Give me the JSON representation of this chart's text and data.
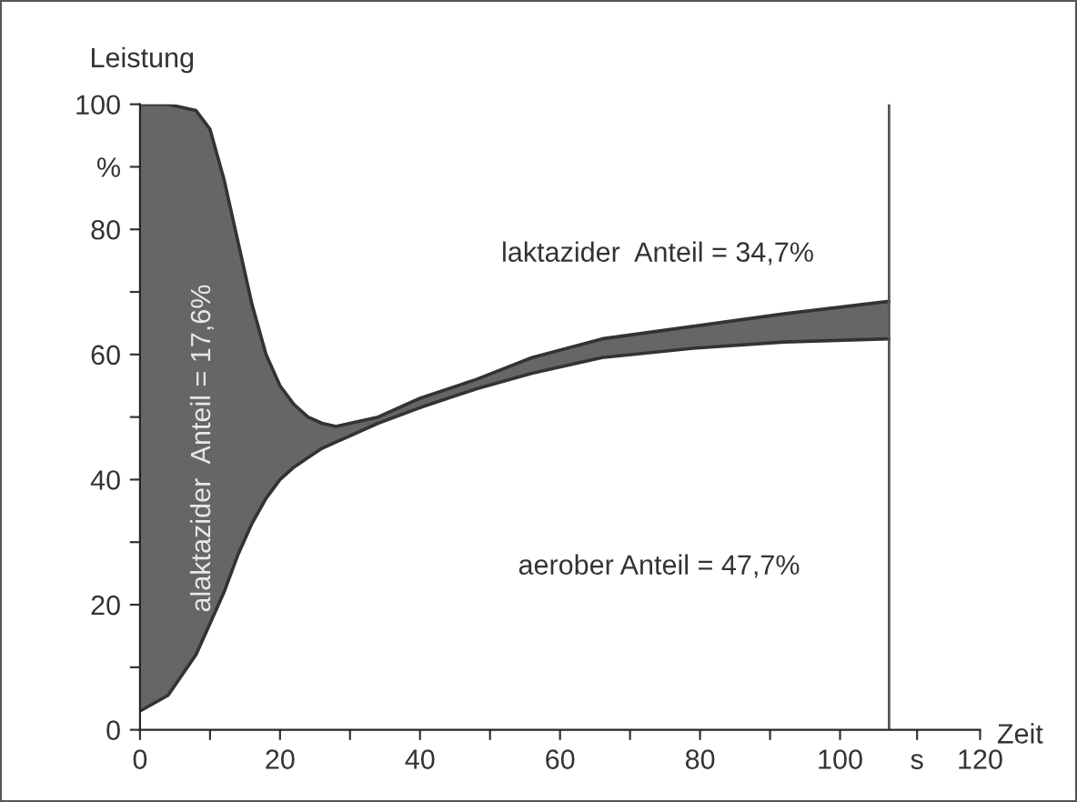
{
  "chart_data": {
    "type": "line",
    "xlabel": "Zeit",
    "ylabel": "Leistung",
    "x": [
      0,
      4,
      8,
      10,
      12,
      14,
      16,
      18,
      20,
      22,
      24,
      26,
      28,
      30,
      34,
      40,
      48,
      56,
      66,
      79,
      92,
      107
    ],
    "series": [
      {
        "color": "#333333",
        "values": [
          3,
          5.5,
          12,
          17,
          22,
          28,
          33,
          37,
          40,
          42,
          43.5,
          45,
          46,
          47,
          49,
          51.5,
          54.5,
          57,
          59.5,
          61,
          62,
          62.5
        ]
      },
      {
        "color": "#333333",
        "values": [
          100,
          100,
          99,
          96,
          88,
          78,
          68,
          60,
          55,
          52,
          50,
          49,
          48.5,
          49,
          50,
          53,
          56,
          59.5,
          62.5,
          64.5,
          66.5,
          68.5
        ],
        "lower": [
          3,
          5.5,
          12,
          17,
          22,
          28,
          33,
          37,
          40,
          42,
          43.5,
          45,
          46,
          47,
          49,
          51.5,
          54.5,
          57,
          59.5,
          61,
          62,
          62.5
        ],
        "upper": [
          100,
          100,
          99,
          96,
          88,
          78,
          68,
          60,
          55,
          52,
          50,
          49,
          48.5,
          49,
          50,
          53,
          56,
          59.5,
          62.5,
          64.5,
          66.5,
          68.5
        ]
      }
    ],
    "xlim": [
      0,
      120
    ],
    "ylim": [
      0,
      100
    ],
    "xticks": [
      0,
      {
        "value": 10,
        "label": null
      },
      20,
      {
        "value": 30,
        "label": null
      },
      40,
      {
        "value": 50,
        "label": null
      },
      60,
      {
        "value": 70,
        "label": null
      },
      80,
      {
        "value": 90,
        "label": null
      },
      100,
      {
        "value": 111,
        "label": "s"
      },
      120
    ],
    "yticks": [
      0,
      {
        "value": 10,
        "label": null
      },
      20,
      {
        "value": 30,
        "label": null
      },
      40,
      {
        "value": 50,
        "label": null
      },
      60,
      {
        "value": 70,
        "label": null
      },
      80,
      {
        "value": 90,
        "label": "%"
      },
      100
    ],
    "ref_lines": [
      {
        "axis": "x",
        "value": 107,
        "color": "#555555"
      }
    ],
    "annotations": [
      "laktazider  Anteil = 34,7%",
      "alaktazider  Anteil = 17,6%",
      "aerober Anteil = 47,7%"
    ],
    "grid": false,
    "legend": false
  }
}
